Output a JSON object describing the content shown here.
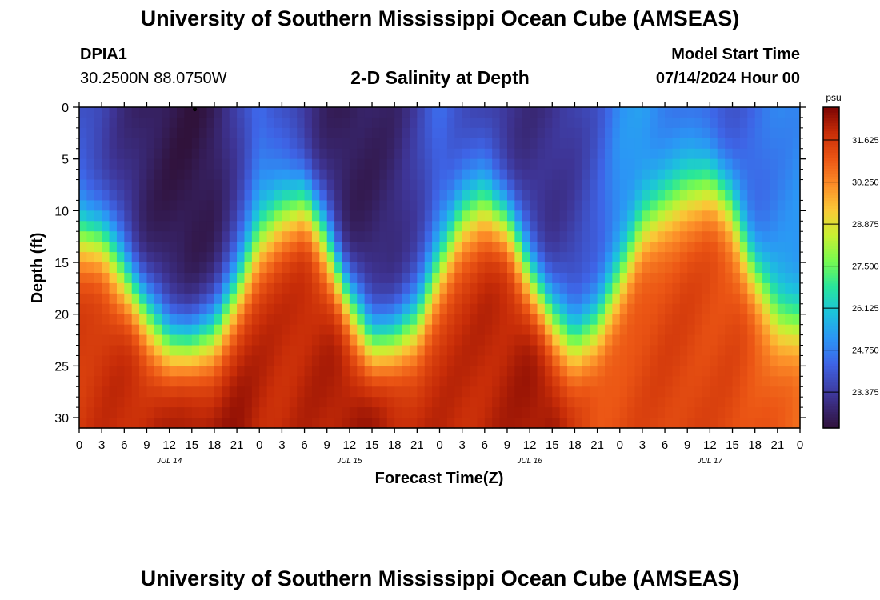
{
  "header": {
    "title": "University of Southern Mississippi Ocean Cube (AMSEAS)",
    "station_id": "DPIA1",
    "coordinates": "30.2500N  88.0750W",
    "plot_title": "2-D Salinity at Depth",
    "model_start_label": "Model Start Time",
    "model_start_value": "07/14/2024 Hour 00"
  },
  "footer": {
    "title": "University of Southern Mississippi Ocean Cube (AMSEAS)"
  },
  "chart_data": {
    "type": "heatmap",
    "title": "2-D Salinity at Depth",
    "xlabel": "Forecast Time(Z)",
    "ylabel": "Depth (ft)",
    "x_hours_range": [
      0,
      96
    ],
    "x_tick_labels": [
      "0",
      "3",
      "6",
      "9",
      "12",
      "15",
      "18",
      "21",
      "0",
      "3",
      "6",
      "9",
      "12",
      "15",
      "18",
      "21",
      "0",
      "3",
      "6",
      "9",
      "12",
      "15",
      "18",
      "21",
      "0",
      "3",
      "6",
      "9",
      "12",
      "15",
      "18",
      "21",
      "0"
    ],
    "day_labels": [
      {
        "label": "JUL 14",
        "hour": 12
      },
      {
        "label": "JUL 15",
        "hour": 36
      },
      {
        "label": "JUL 16",
        "hour": 60
      },
      {
        "label": "JUL 17",
        "hour": 84
      }
    ],
    "y_ticks": [
      0,
      5,
      10,
      15,
      20,
      25,
      30
    ],
    "y_tick_labels": [
      "0",
      "5",
      "10",
      "15",
      "20",
      "25",
      "30"
    ],
    "ylim": [
      0,
      31
    ],
    "colorbar": {
      "units": "psu",
      "range": [
        22.2,
        32.7
      ],
      "ticks": [
        23.375,
        24.75,
        26.125,
        27.5,
        28.875,
        30.25,
        31.625
      ],
      "tick_labels": [
        "23.375",
        "24.750",
        "26.125",
        "27.500",
        "28.875",
        "30.250",
        "31.625"
      ]
    },
    "halocline_depth_ft": [
      [
        0,
        12
      ],
      [
        3,
        13
      ],
      [
        6,
        16
      ],
      [
        9,
        20
      ],
      [
        12,
        22.5
      ],
      [
        15,
        23
      ],
      [
        18,
        22
      ],
      [
        21,
        18
      ],
      [
        24,
        13
      ],
      [
        27,
        10
      ],
      [
        30,
        9
      ],
      [
        33,
        13
      ],
      [
        36,
        19
      ],
      [
        39,
        22.5
      ],
      [
        42,
        22.5
      ],
      [
        45,
        21
      ],
      [
        48,
        16
      ],
      [
        51,
        11
      ],
      [
        54,
        9
      ],
      [
        57,
        11
      ],
      [
        60,
        16
      ],
      [
        63,
        20.5
      ],
      [
        66,
        22.5
      ],
      [
        69,
        21
      ],
      [
        72,
        17
      ],
      [
        75,
        12
      ],
      [
        78,
        10
      ],
      [
        81,
        8
      ],
      [
        84,
        7
      ],
      [
        87,
        10
      ],
      [
        90,
        16
      ],
      [
        93,
        20
      ],
      [
        96,
        21
      ]
    ],
    "surface_salinity_psu": [
      [
        0,
        23.8
      ],
      [
        3,
        23.5
      ],
      [
        6,
        23.0
      ],
      [
        9,
        22.6
      ],
      [
        12,
        22.4
      ],
      [
        15,
        22.3
      ],
      [
        18,
        22.5
      ],
      [
        21,
        23.4
      ],
      [
        24,
        24.6
      ],
      [
        27,
        23.8
      ],
      [
        30,
        23.1
      ],
      [
        33,
        22.7
      ],
      [
        36,
        22.5
      ],
      [
        39,
        22.6
      ],
      [
        42,
        22.8
      ],
      [
        45,
        23.4
      ],
      [
        48,
        24.4
      ],
      [
        51,
        23.9
      ],
      [
        54,
        23.4
      ],
      [
        57,
        23.1
      ],
      [
        60,
        23.0
      ],
      [
        63,
        23.1
      ],
      [
        66,
        23.4
      ],
      [
        69,
        24.0
      ],
      [
        72,
        25.0
      ],
      [
        75,
        25.2
      ],
      [
        78,
        24.8
      ],
      [
        81,
        24.4
      ],
      [
        84,
        24.0
      ],
      [
        87,
        24.0
      ],
      [
        90,
        24.3
      ],
      [
        93,
        24.8
      ],
      [
        96,
        25.0
      ]
    ],
    "bottom_salinity_psu": [
      [
        0,
        31.6
      ],
      [
        3,
        31.8
      ],
      [
        6,
        31.9
      ],
      [
        9,
        32.0
      ],
      [
        12,
        32.2
      ],
      [
        15,
        32.5
      ],
      [
        18,
        32.4
      ],
      [
        21,
        32.3
      ],
      [
        24,
        32.0
      ],
      [
        27,
        31.9
      ],
      [
        30,
        32.0
      ],
      [
        33,
        32.1
      ],
      [
        36,
        32.3
      ],
      [
        39,
        32.4
      ],
      [
        42,
        32.2
      ],
      [
        45,
        32.0
      ],
      [
        48,
        31.9
      ],
      [
        51,
        31.9
      ],
      [
        54,
        32.0
      ],
      [
        57,
        32.1
      ],
      [
        60,
        32.3
      ],
      [
        63,
        32.4
      ],
      [
        66,
        31.6
      ],
      [
        69,
        31.2
      ],
      [
        72,
        31.2
      ],
      [
        75,
        31.3
      ],
      [
        78,
        31.4
      ],
      [
        81,
        31.4
      ],
      [
        84,
        31.3
      ],
      [
        87,
        31.3
      ],
      [
        90,
        31.1
      ],
      [
        93,
        30.9
      ],
      [
        96,
        30.8
      ]
    ]
  }
}
